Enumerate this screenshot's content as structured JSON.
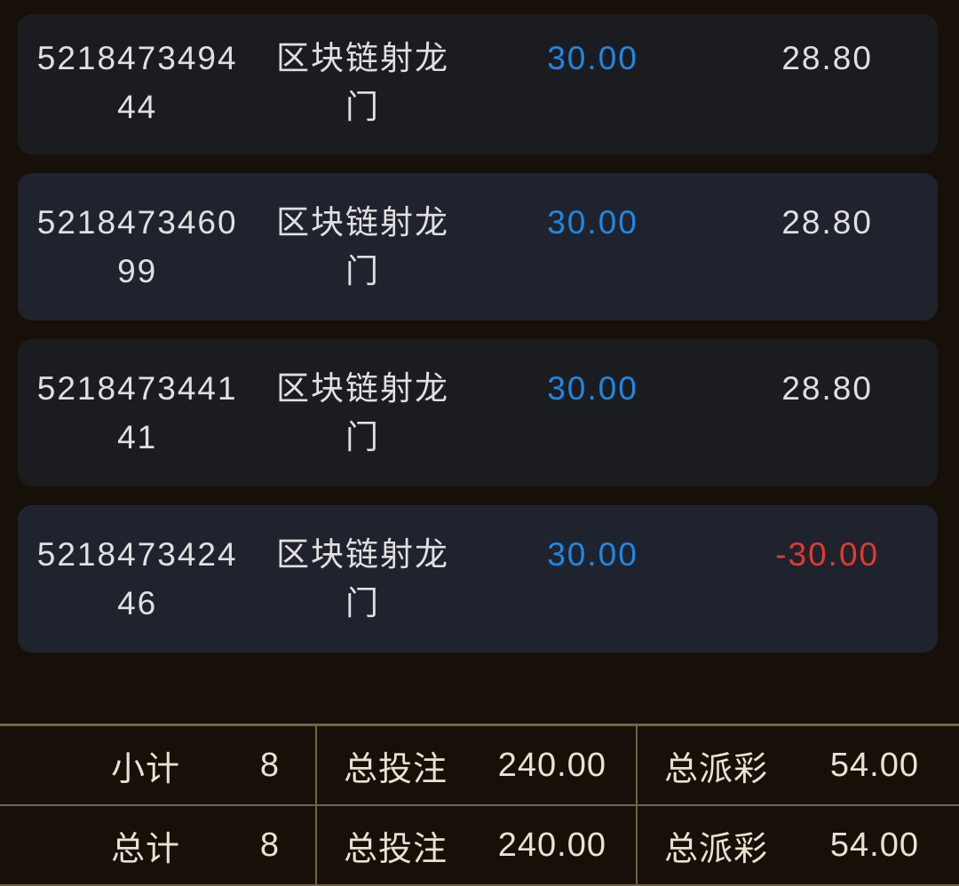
{
  "colors": {
    "page_bg": "#161009",
    "card_odd_bg": "#1b1c20",
    "card_even_bg": "#1f232d",
    "text_primary": "#e0e0e0",
    "bet_blue": "#1e88e5",
    "loss_red": "#e03b2e",
    "summary_border": "#746340",
    "summary_text": "#eae2d0"
  },
  "bet_list": {
    "rows": [
      {
        "id_lines": [
          "5218473494",
          "44"
        ],
        "game_lines": [
          "区块链射龙",
          "门"
        ],
        "bet_amount": "30.00",
        "result": "28.80"
      },
      {
        "id_lines": [
          "5218473460",
          "99"
        ],
        "game_lines": [
          "区块链射龙",
          "门"
        ],
        "bet_amount": "30.00",
        "result": "28.80"
      },
      {
        "id_lines": [
          "5218473441",
          "41"
        ],
        "game_lines": [
          "区块链射龙",
          "门"
        ],
        "bet_amount": "30.00",
        "result": "28.80"
      },
      {
        "id_lines": [
          "5218473424",
          "46"
        ],
        "game_lines": [
          "区块链射龙",
          "门"
        ],
        "bet_amount": "30.00",
        "result": "-30.00"
      }
    ]
  },
  "summary": {
    "rows": [
      {
        "label": "小计",
        "count": "8",
        "bet_label": "总投注",
        "bet_value": "240.00",
        "payout_label": "总派彩",
        "payout_value": "54.00"
      },
      {
        "label": "总计",
        "count": "8",
        "bet_label": "总投注",
        "bet_value": "240.00",
        "payout_label": "总派彩",
        "payout_value": "54.00"
      }
    ]
  }
}
